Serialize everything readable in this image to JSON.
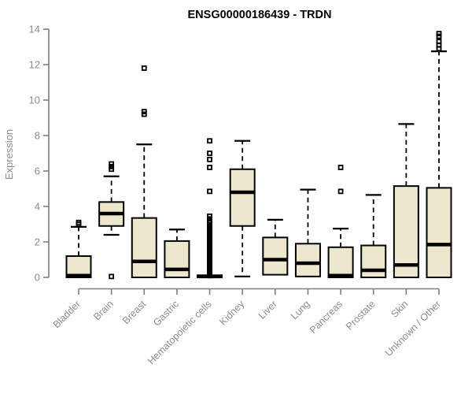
{
  "chart_data": {
    "type": "boxplot",
    "title": "ENSG00000186439 - TRDN",
    "ylabel": "Expression",
    "xlabel": "",
    "ylim": [
      0,
      14
    ],
    "yticks": [
      0,
      2,
      4,
      6,
      8,
      10,
      12,
      14
    ],
    "grid": false,
    "legend": null,
    "categories": [
      "Bladder",
      "Brain",
      "Breast",
      "Gastric",
      "Hematopoietic cells",
      "Kidney",
      "Liver",
      "Lung",
      "Pancreas",
      "Prostate",
      "Skin",
      "Unknown / Other"
    ],
    "boxes": [
      {
        "category": "Bladder",
        "whisker_low": null,
        "q1": 0,
        "median": 0.1,
        "q3": 1.2,
        "whisker_high": 2.85,
        "outliers": [
          3.0,
          3.1
        ]
      },
      {
        "category": "Brain",
        "whisker_low": 2.4,
        "q1": 2.9,
        "median": 3.6,
        "q3": 4.25,
        "whisker_high": 5.7,
        "outliers": [
          0.05,
          6.1,
          6.25,
          6.4
        ]
      },
      {
        "category": "Breast",
        "whisker_low": null,
        "q1": 0,
        "median": 0.9,
        "q3": 3.35,
        "whisker_high": 7.5,
        "outliers": [
          9.2,
          9.35,
          11.8
        ]
      },
      {
        "category": "Gastric",
        "whisker_low": null,
        "q1": 0,
        "median": 0.45,
        "q3": 2.05,
        "whisker_high": 2.7,
        "outliers": []
      },
      {
        "category": "Hematopoietic cells",
        "whisker_low": null,
        "q1": 0,
        "median": 0.05,
        "q3": 0.12,
        "whisker_high": null,
        "outliers": [
          3.15,
          3.3,
          3.45,
          4.85,
          6.2,
          6.65,
          7.0,
          7.7
        ],
        "outlier_column": {
          "from": 0.1,
          "to": 3.0,
          "step": 0.06
        }
      },
      {
        "category": "Kidney",
        "whisker_low": 0.05,
        "q1": 2.9,
        "median": 4.8,
        "q3": 6.1,
        "whisker_high": 7.7,
        "outliers": []
      },
      {
        "category": "Liver",
        "whisker_low": null,
        "q1": 0.15,
        "median": 1.0,
        "q3": 2.25,
        "whisker_high": 3.25,
        "outliers": []
      },
      {
        "category": "Lung",
        "whisker_low": null,
        "q1": 0.05,
        "median": 0.8,
        "q3": 1.9,
        "whisker_high": 4.95,
        "outliers": []
      },
      {
        "category": "Pancreas",
        "whisker_low": null,
        "q1": 0,
        "median": 0.1,
        "q3": 1.7,
        "whisker_high": 2.75,
        "outliers": [
          4.85,
          6.2
        ]
      },
      {
        "category": "Prostate",
        "whisker_low": null,
        "q1": 0,
        "median": 0.4,
        "q3": 1.8,
        "whisker_high": 4.65,
        "outliers": []
      },
      {
        "category": "Skin",
        "whisker_low": null,
        "q1": 0,
        "median": 0.7,
        "q3": 5.15,
        "whisker_high": 8.65,
        "outliers": []
      },
      {
        "category": "Unknown / Other",
        "whisker_low": null,
        "q1": 0,
        "median": 1.85,
        "q3": 5.05,
        "whisker_high": 12.75,
        "outliers": [
          12.9,
          13.1,
          13.3,
          13.6,
          13.75
        ]
      }
    ],
    "colors": {
      "background": "#ffffff",
      "box_fill": "#ece7cd",
      "box_stroke": "#000000",
      "median": "#000000",
      "whisker": "#000000",
      "outlier": "#000000",
      "axis": "#7f7f7f",
      "tick_label": "#8c8c8c",
      "title": "#000000"
    }
  }
}
